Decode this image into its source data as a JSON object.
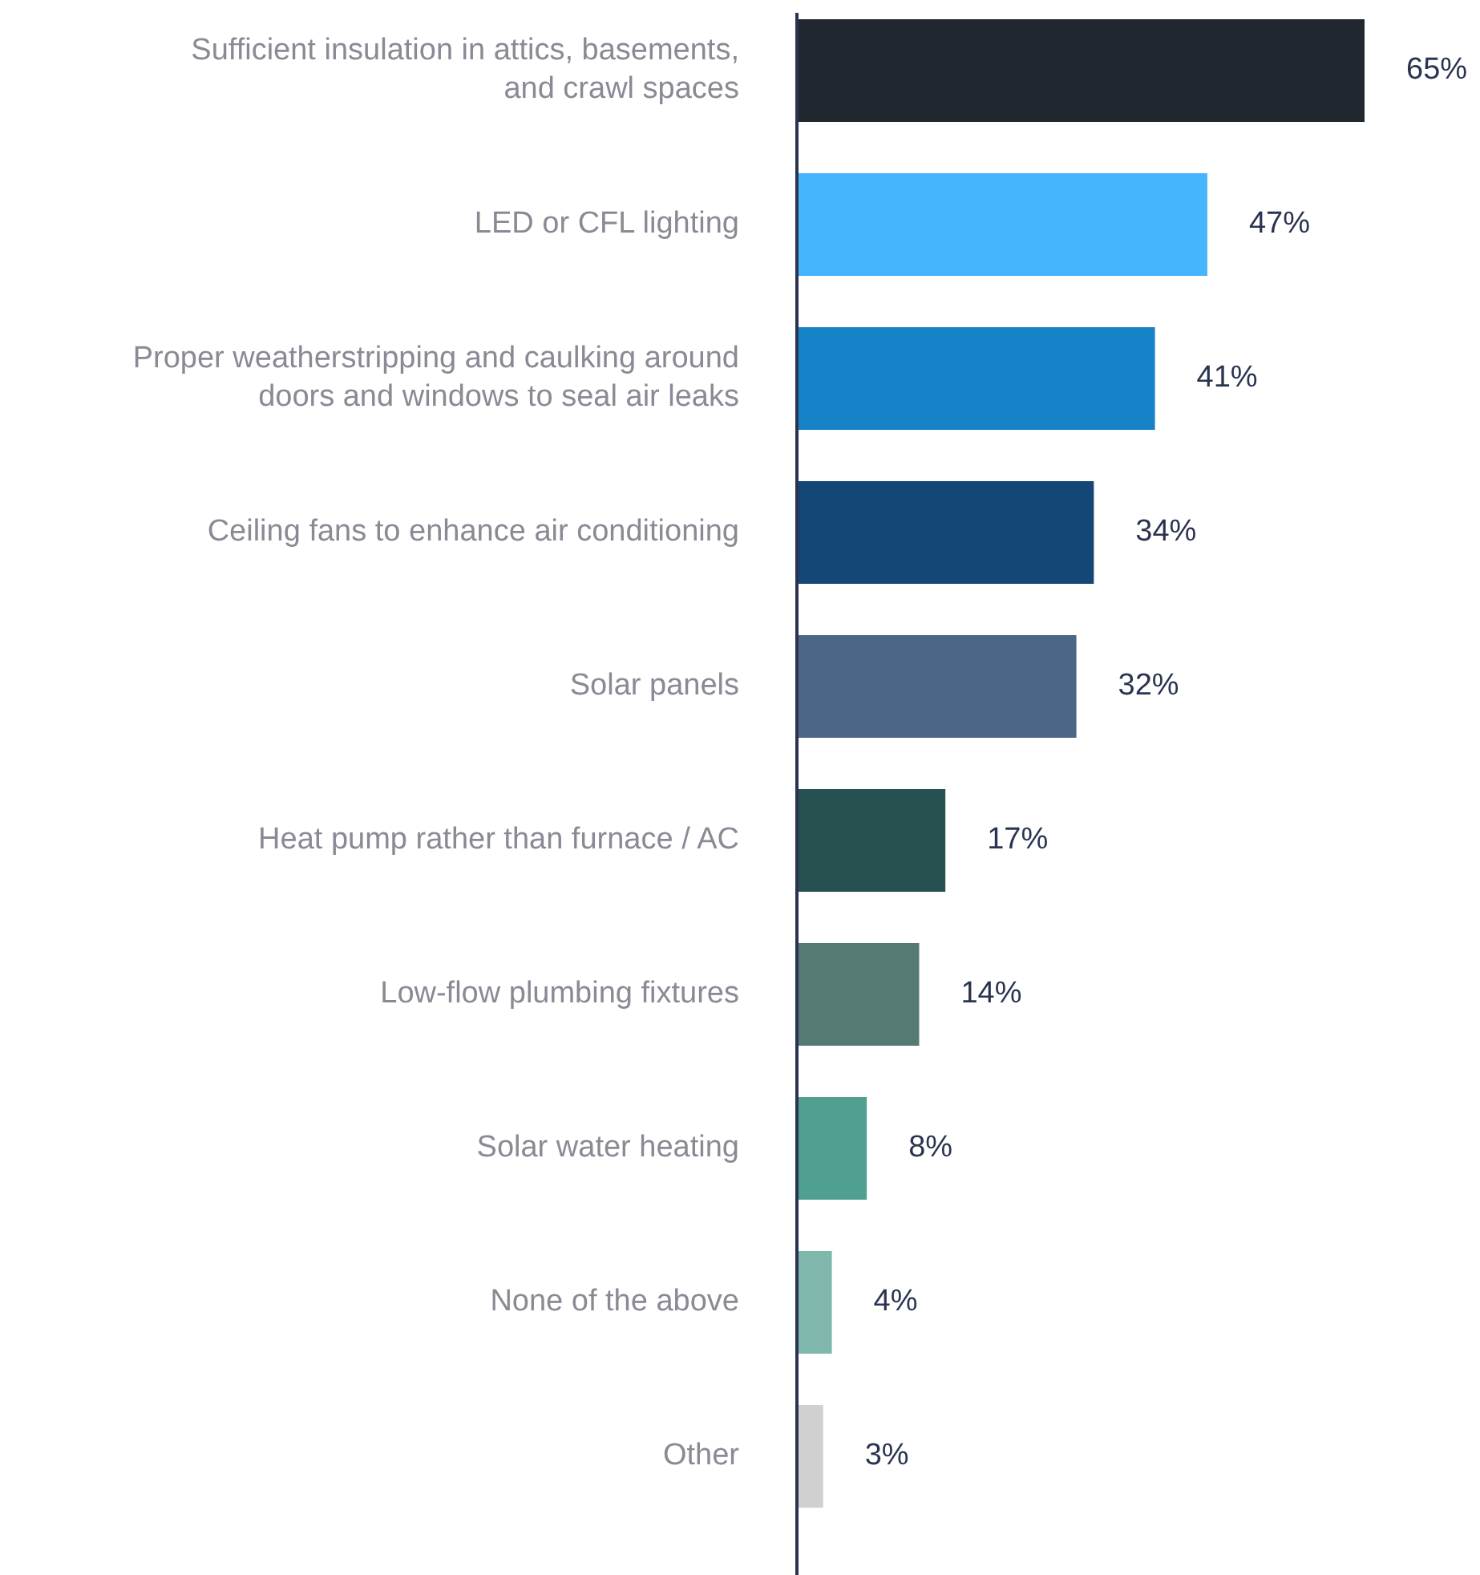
{
  "chart_data": {
    "type": "bar",
    "orientation": "horizontal",
    "value_labels": [
      "65%",
      "47%",
      "41%",
      "34%",
      "32%",
      "17%",
      "14%",
      "8%",
      "4%",
      "3%"
    ],
    "categories": [
      "Sufficient insulation in attics, basements, and crawl spaces",
      "LED or CFL lighting",
      "Proper weatherstripping and caulking around doors and windows to seal air leaks",
      "Ceiling fans to enhance air conditioning",
      "Solar panels",
      "Heat pump rather than furnace / AC",
      "Low-flow plumbing fixtures",
      "Solar water heating",
      "None of the above",
      "Other"
    ],
    "values": [
      65,
      47,
      41,
      34,
      32,
      17,
      14,
      8,
      4,
      3
    ],
    "colors": [
      "#20272f",
      "#45b5fe",
      "#1683c8",
      "#144776",
      "#4a6886",
      "#275050",
      "#557a74",
      "#50a08f",
      "#7fb7ac",
      "#d0d0d0"
    ]
  }
}
